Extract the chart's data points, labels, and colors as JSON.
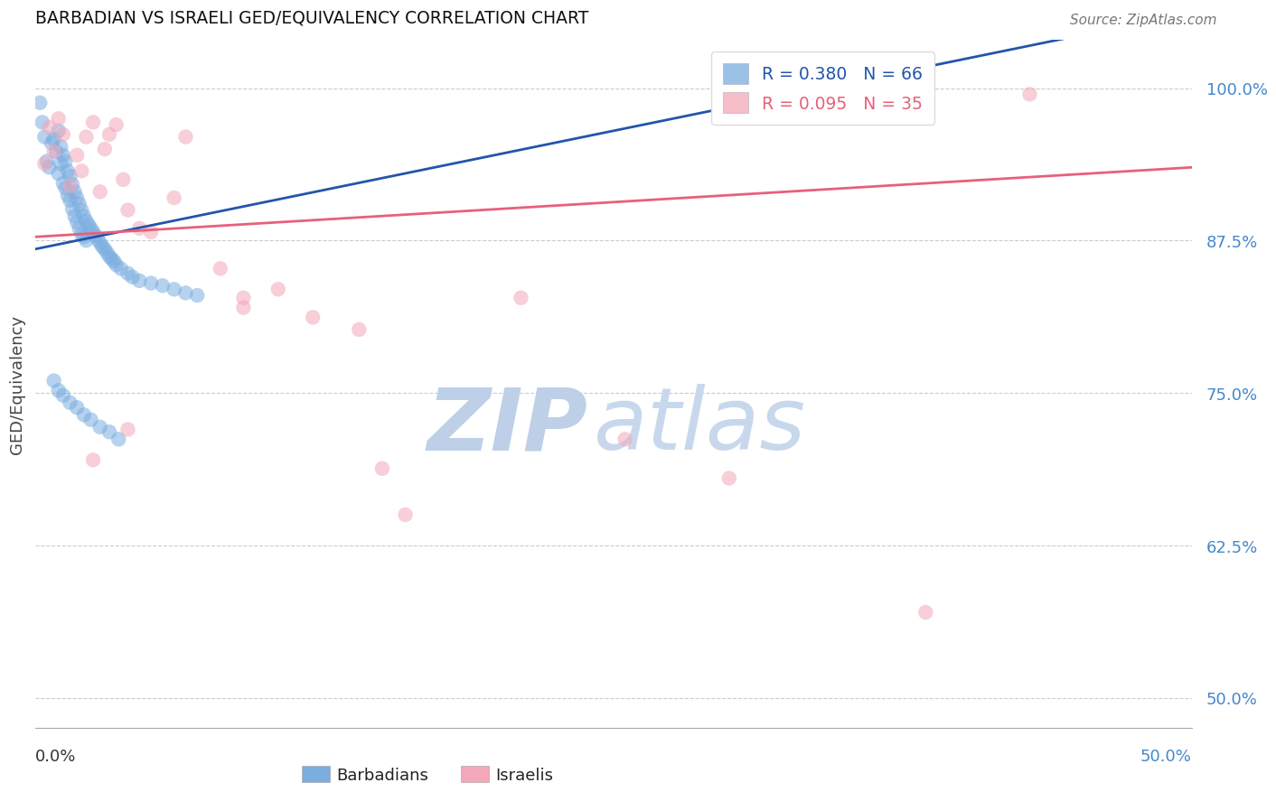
{
  "title": "BARBADIAN VS ISRAELI GED/EQUIVALENCY CORRELATION CHART",
  "source": "Source: ZipAtlas.com",
  "ylabel": "GED/Equivalency",
  "yticks": [
    0.5,
    0.625,
    0.75,
    0.875,
    1.0
  ],
  "ytick_labels": [
    "50.0%",
    "62.5%",
    "75.0%",
    "87.5%",
    "100.0%"
  ],
  "xmin": 0.0,
  "xmax": 0.5,
  "ymin": 0.475,
  "ymax": 1.04,
  "barbadian_R": 0.38,
  "barbadian_N": 66,
  "israeli_R": 0.095,
  "israeli_N": 35,
  "blue_color": "#7AADE0",
  "pink_color": "#F4A7B9",
  "blue_line_color": "#2255AA",
  "pink_line_color": "#E8607A",
  "legend_label_blue": "Barbadians",
  "legend_label_pink": "Israelis",
  "barbadian_x": [
    0.002,
    0.003,
    0.004,
    0.005,
    0.006,
    0.007,
    0.008,
    0.009,
    0.01,
    0.01,
    0.011,
    0.011,
    0.012,
    0.012,
    0.013,
    0.013,
    0.014,
    0.014,
    0.015,
    0.015,
    0.016,
    0.016,
    0.017,
    0.017,
    0.018,
    0.018,
    0.019,
    0.019,
    0.02,
    0.02,
    0.021,
    0.021,
    0.022,
    0.022,
    0.023,
    0.024,
    0.025,
    0.026,
    0.027,
    0.028,
    0.029,
    0.03,
    0.031,
    0.032,
    0.033,
    0.034,
    0.035,
    0.037,
    0.04,
    0.042,
    0.045,
    0.05,
    0.055,
    0.06,
    0.065,
    0.07,
    0.008,
    0.01,
    0.012,
    0.015,
    0.018,
    0.021,
    0.024,
    0.028,
    0.032,
    0.036
  ],
  "barbadian_y": [
    0.988,
    0.972,
    0.96,
    0.94,
    0.935,
    0.955,
    0.958,
    0.948,
    0.965,
    0.93,
    0.952,
    0.938,
    0.945,
    0.922,
    0.94,
    0.918,
    0.932,
    0.912,
    0.928,
    0.908,
    0.921,
    0.901,
    0.915,
    0.895,
    0.91,
    0.89,
    0.905,
    0.885,
    0.9,
    0.88,
    0.895,
    0.878,
    0.891,
    0.875,
    0.888,
    0.885,
    0.882,
    0.879,
    0.876,
    0.873,
    0.87,
    0.868,
    0.865,
    0.862,
    0.86,
    0.858,
    0.855,
    0.852,
    0.848,
    0.845,
    0.842,
    0.84,
    0.838,
    0.835,
    0.832,
    0.83,
    0.76,
    0.752,
    0.748,
    0.742,
    0.738,
    0.732,
    0.728,
    0.722,
    0.718,
    0.712
  ],
  "israeli_x": [
    0.004,
    0.006,
    0.008,
    0.01,
    0.012,
    0.015,
    0.018,
    0.02,
    0.022,
    0.025,
    0.028,
    0.03,
    0.032,
    0.035,
    0.038,
    0.04,
    0.045,
    0.05,
    0.06,
    0.065,
    0.08,
    0.09,
    0.105,
    0.12,
    0.14,
    0.16,
    0.21,
    0.255,
    0.3,
    0.385,
    0.43,
    0.15,
    0.09,
    0.04,
    0.025
  ],
  "israeli_y": [
    0.938,
    0.968,
    0.948,
    0.975,
    0.962,
    0.92,
    0.945,
    0.932,
    0.96,
    0.972,
    0.915,
    0.95,
    0.962,
    0.97,
    0.925,
    0.9,
    0.885,
    0.882,
    0.91,
    0.96,
    0.852,
    0.82,
    0.835,
    0.812,
    0.802,
    0.65,
    0.828,
    0.712,
    0.68,
    0.57,
    0.995,
    0.688,
    0.828,
    0.72,
    0.695
  ],
  "watermark_zip": "ZIP",
  "watermark_atlas": "atlas",
  "watermark_color_zip": "#BDD0E8",
  "watermark_color_atlas": "#C8D8EC"
}
